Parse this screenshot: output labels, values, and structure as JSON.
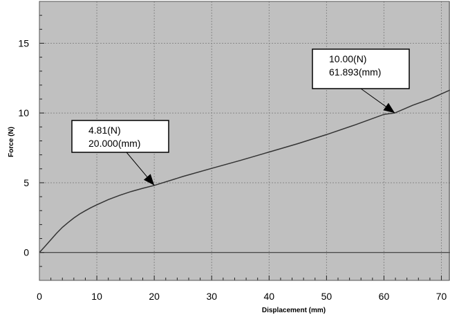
{
  "chart_data": {
    "type": "line",
    "title": "",
    "xlabel": "Displacement (mm)",
    "ylabel": "Force (N)",
    "xlim": [
      0,
      71.5
    ],
    "ylim": [
      -2,
      18
    ],
    "x_ticks": [
      0,
      10,
      20,
      30,
      40,
      50,
      60,
      70
    ],
    "y_ticks": [
      0,
      5,
      10,
      15
    ],
    "grid": true,
    "legend": "none",
    "colors": {
      "plot_background": "#c0c0c0",
      "line": "#333333",
      "grid": "#888888",
      "annotation_box": "#ffffff"
    },
    "series": [
      {
        "x": [
          0,
          1,
          2,
          3,
          4,
          5,
          6,
          7,
          8,
          9,
          10,
          12,
          14,
          16,
          18,
          20,
          25,
          30,
          35,
          40,
          45,
          50,
          55,
          60,
          61.893,
          65,
          68,
          71.5
        ],
        "values": [
          0,
          0.45,
          0.92,
          1.38,
          1.8,
          2.15,
          2.47,
          2.76,
          3.0,
          3.22,
          3.42,
          3.79,
          4.1,
          4.37,
          4.6,
          4.81,
          5.45,
          6.03,
          6.6,
          7.2,
          7.8,
          8.45,
          9.15,
          9.9,
          10.0,
          10.55,
          11.0,
          11.65
        ]
      }
    ],
    "annotations": [
      {
        "line1": "4.81(N)",
        "line2": "20.000(mm)",
        "x": 20.0,
        "y": 4.81
      },
      {
        "line1": "10.00(N)",
        "line2": "61.893(mm)",
        "x": 61.893,
        "y": 10.0
      }
    ]
  }
}
